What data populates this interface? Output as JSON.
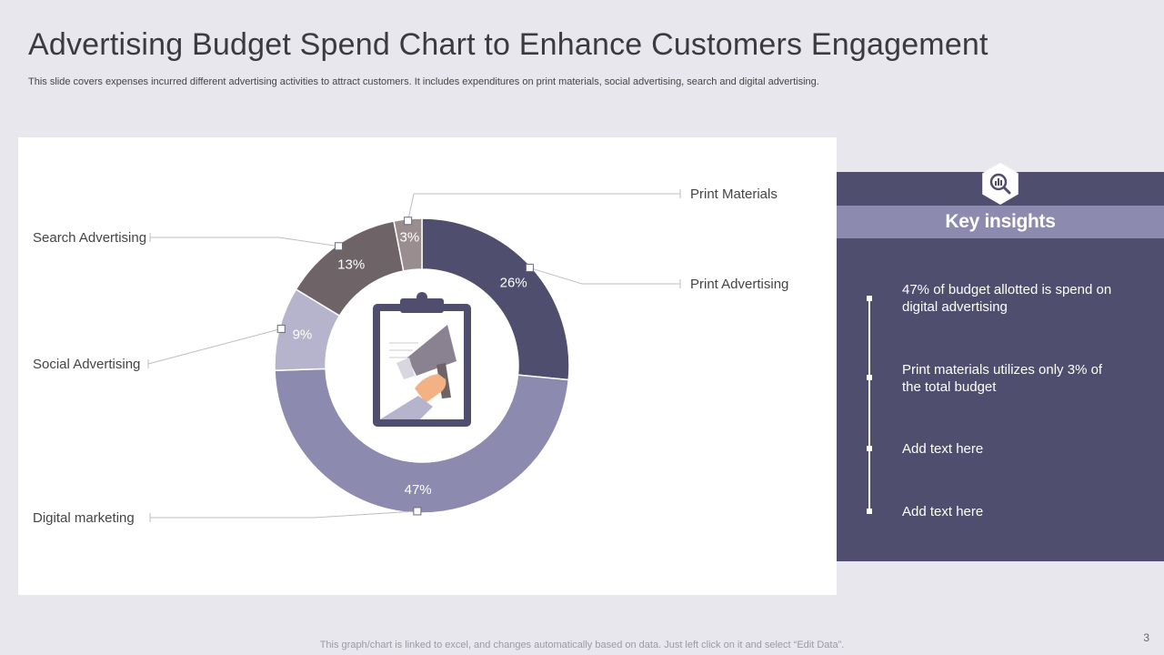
{
  "slide": {
    "title": "Advertising Budget Spend Chart to Enhance Customers Engagement",
    "subtitle": "This slide covers expenses incurred different advertising activities to attract customers. It includes expenditures on print materials, social advertising, search and digital advertising.",
    "footer_note": "This graph/chart is linked to excel,  and changes automatically based on data. Just left click on it and select “Edit Data”.",
    "page_number": "3"
  },
  "chart_data": {
    "type": "pie",
    "donut": true,
    "categories": [
      "Print Advertising",
      "Digital marketing",
      "Social Advertising",
      "Search Advertising",
      "Print Materials"
    ],
    "values": [
      26,
      47,
      9,
      13,
      3
    ],
    "value_labels": [
      "26%",
      "47%",
      "9%",
      "13%",
      "3%"
    ],
    "colors": [
      "#4f4e6e",
      "#8d8ab0",
      "#b6b3cd",
      "#6e6468",
      "#9a8d90"
    ],
    "legend": "callout-labels"
  },
  "insights": {
    "title": "Key insights",
    "icon": "magnifier-chart-icon",
    "items": [
      "47% of budget allotted is spend on digital advertising",
      "Print materials utilizes only 3% of the total budget",
      "Add text here",
      "Add text here"
    ]
  },
  "center_graphic": {
    "icon": "clipboard-megaphone-icon"
  }
}
